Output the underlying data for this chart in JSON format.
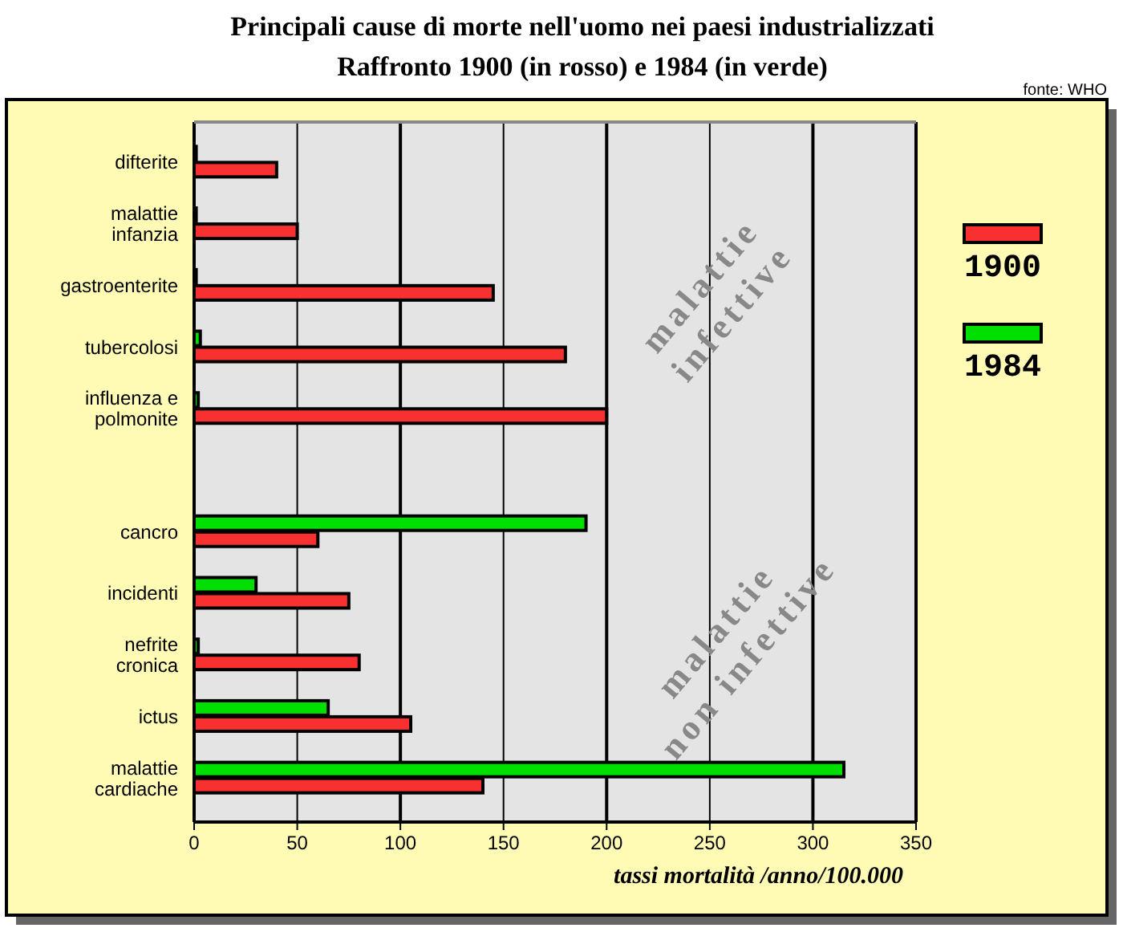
{
  "chart_data": {
    "type": "bar",
    "orientation": "horizontal",
    "title": "Principali cause di morte nell'uomo nei paesi industrializzati",
    "subtitle": "Raffronto 1900 (in rosso) e 1984 (in verde)",
    "xlabel": "tassi mortalità /anno/100.000",
    "categories": [
      "difterite",
      "malattie infanzia",
      "gastroenterite",
      "tubercolosi",
      "influenza e polmonite",
      null,
      "cancro",
      "incidenti",
      "nefrite cronica",
      "ictus",
      "malattie cardiache"
    ],
    "series": [
      {
        "name": "1900",
        "color": "#f83030",
        "values": [
          40,
          50,
          145,
          180,
          200,
          null,
          60,
          75,
          80,
          105,
          140
        ]
      },
      {
        "name": "1984",
        "color": "#00e000",
        "values": [
          1,
          1,
          1,
          3,
          2,
          null,
          190,
          30,
          2,
          65,
          315
        ]
      }
    ],
    "xlim": [
      0,
      350
    ],
    "xticks": [
      0,
      50,
      100,
      150,
      200,
      250,
      300,
      350
    ],
    "grid": "x",
    "legend": "right",
    "annotations": [
      "malattie infettive",
      "malattie non infettive",
      "fonte: WHO"
    ]
  }
}
